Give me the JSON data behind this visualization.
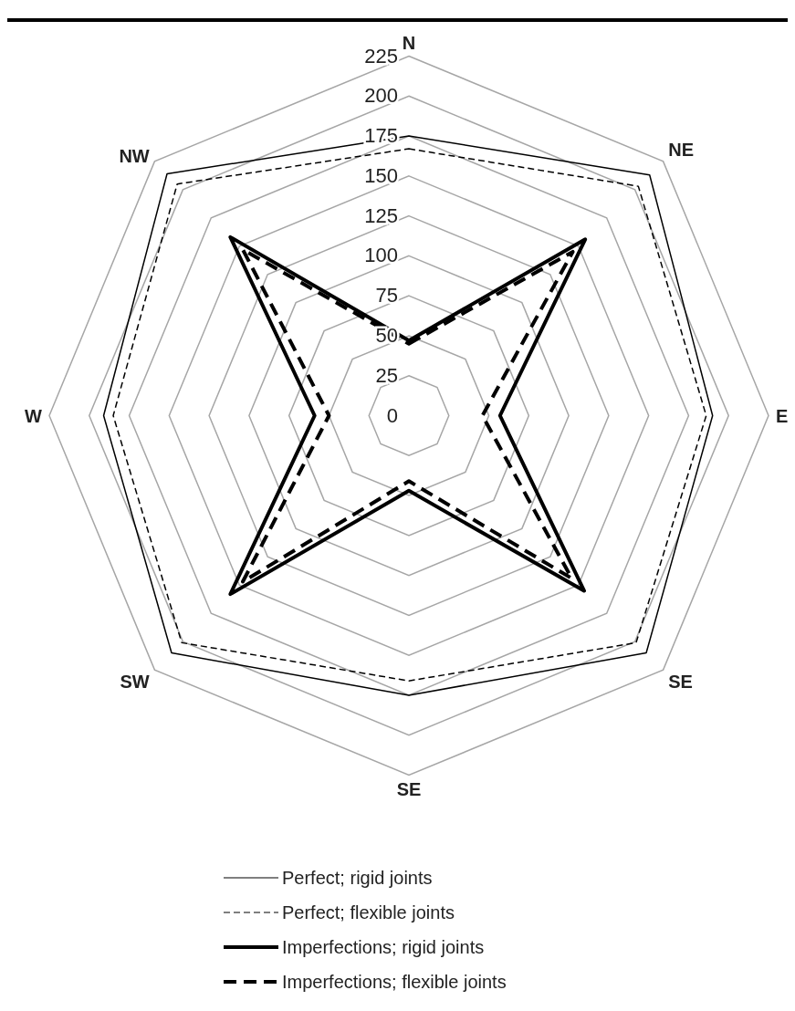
{
  "chart_data": {
    "type": "radar",
    "categories": [
      "N",
      "NE",
      "E",
      "SE",
      "SE",
      "SW",
      "W",
      "NW"
    ],
    "ylim": [
      0,
      225
    ],
    "yticks": [
      0,
      25,
      50,
      75,
      100,
      125,
      150,
      175,
      200,
      225
    ],
    "grid": true,
    "legend": "bottom",
    "marker": "none",
    "series": [
      {
        "name": "Perfect; rigid joints",
        "color": "#000000",
        "line_style": "solid",
        "values": [
          175,
          213,
          190,
          210,
          175,
          210,
          191,
          214
        ]
      },
      {
        "name": "Perfect; flexible joints",
        "color": "#000000",
        "line_style": "dashed",
        "values": [
          167,
          203,
          186,
          201,
          166,
          201,
          185,
          205
        ]
      },
      {
        "name": "Imperfections; rigid joints",
        "color": "#000000",
        "line_style": "solid",
        "values": [
          47,
          156,
          57,
          155,
          47,
          158,
          59,
          158
        ]
      },
      {
        "name": "Imperfections; flexible joints",
        "color": "#000000",
        "line_style": "dashed",
        "values": [
          45,
          145,
          46,
          144,
          41,
          147,
          50,
          147
        ]
      }
    ]
  }
}
